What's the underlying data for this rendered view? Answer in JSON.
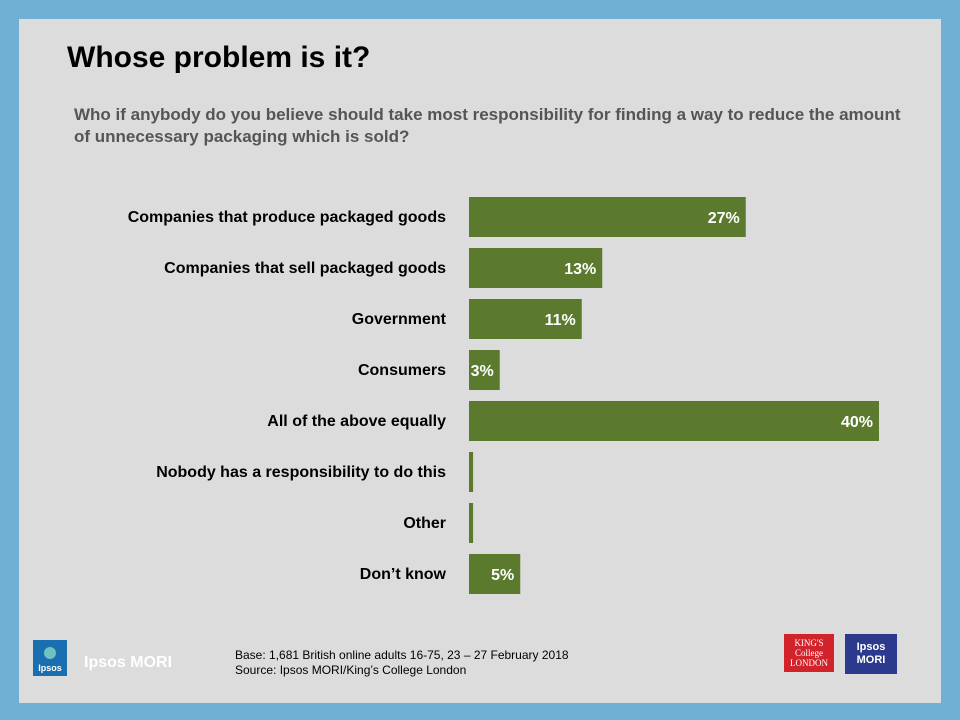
{
  "slide": {
    "title": "Whose problem is it?",
    "question": "Who if anybody do you believe should take most responsibility for finding a way to reduce the amount of unnecessary packaging which is sold?",
    "base_note": "Base: 1,681 British online adults 16-75, 23 – 27 February 2018",
    "source_note": "Source: Ipsos MORI/King’s College London"
  },
  "logos": {
    "ipsos_small": "Ipsos",
    "ipsos_mori": "Ipsos MORI",
    "kings_line1": "KING'S",
    "kings_line2": "College",
    "kings_line3": "LONDON",
    "mori_line1": "Ipsos",
    "mori_line2": "MORI"
  },
  "colors": {
    "bar": "#5b7a2e",
    "background": "#dcdcdc",
    "frame": "#6fb0d4"
  },
  "chart_data": {
    "type": "bar",
    "orientation": "horizontal",
    "categories": [
      "Companies that produce packaged goods",
      "Companies that sell packaged goods",
      "Government",
      "Consumers",
      "All of the above equally",
      "Nobody has a responsibility to do this",
      "Other",
      "Don’t know"
    ],
    "values": [
      27,
      13,
      11,
      3,
      40,
      0.4,
      0.4,
      5
    ],
    "data_labels": [
      "27%",
      "13%",
      "11%",
      "3%",
      "40%",
      "",
      "",
      "5%"
    ],
    "xlim": [
      0,
      40
    ],
    "grid": false
  }
}
